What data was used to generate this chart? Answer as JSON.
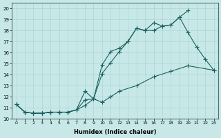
{
  "xlabel": "Humidex (Indice chaleur)",
  "background_color": "#c8e8e8",
  "line_color": "#1a6060",
  "grid_color": "#a8d4d4",
  "xlim": [
    -0.5,
    23.5
  ],
  "ylim": [
    10,
    20.5
  ],
  "yticks": [
    10,
    11,
    12,
    13,
    14,
    15,
    16,
    17,
    18,
    19,
    20
  ],
  "xticks": [
    0,
    1,
    2,
    3,
    4,
    5,
    6,
    7,
    8,
    9,
    10,
    11,
    12,
    13,
    14,
    15,
    16,
    17,
    18,
    19,
    20,
    21,
    22,
    23
  ],
  "line1_x": [
    0,
    1,
    2,
    3,
    4,
    5,
    6,
    7,
    8,
    9,
    10,
    11,
    12,
    13,
    14,
    15,
    16,
    17,
    18,
    19,
    20
  ],
  "line1_y": [
    11.3,
    10.6,
    10.5,
    10.5,
    10.6,
    10.6,
    10.6,
    10.8,
    11.7,
    11.8,
    14.1,
    15.1,
    16.1,
    17.0,
    18.2,
    18.0,
    18.0,
    18.4,
    18.5,
    19.2,
    19.8
  ],
  "line2_x": [
    0,
    1,
    2,
    3,
    4,
    5,
    6,
    7,
    8,
    9,
    10,
    11,
    12,
    13,
    14,
    15,
    16,
    17,
    18,
    19,
    20,
    21,
    22,
    23
  ],
  "line2_y": [
    11.3,
    10.6,
    10.5,
    10.5,
    10.6,
    10.6,
    10.6,
    10.8,
    12.5,
    11.8,
    14.9,
    16.1,
    16.4,
    17.0,
    18.2,
    18.0,
    18.7,
    18.4,
    18.5,
    19.2,
    17.8,
    16.5,
    15.4,
    14.4
  ],
  "line3_x": [
    0,
    1,
    2,
    3,
    4,
    5,
    6,
    7,
    8,
    9,
    10,
    11,
    12,
    14,
    16,
    18,
    20,
    23
  ],
  "line3_y": [
    11.3,
    10.6,
    10.5,
    10.5,
    10.6,
    10.6,
    10.6,
    10.8,
    11.2,
    11.8,
    11.5,
    12.0,
    12.5,
    13.0,
    13.8,
    14.3,
    14.8,
    14.4
  ]
}
